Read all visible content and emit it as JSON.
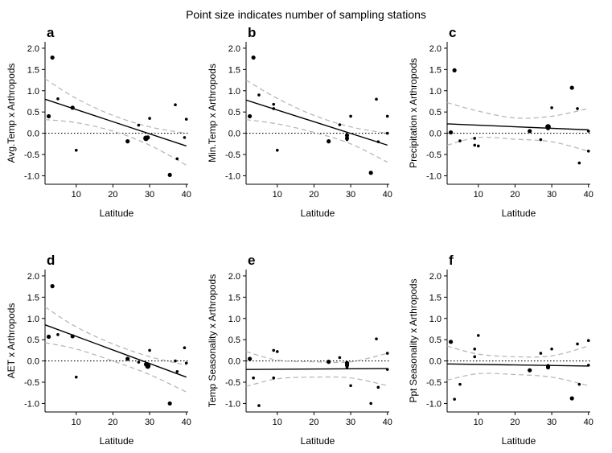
{
  "figure_title": "Point size indicates number of sampling stations",
  "chart_data": [
    {
      "panel": "a",
      "type": "scatter",
      "xlabel": "Latitude",
      "ylabel": "Avg.Temp x Arthropods",
      "xlim": [
        1.5,
        40.5
      ],
      "ylim": [
        -1.2,
        2.15
      ],
      "xticks": [
        10,
        20,
        30,
        40
      ],
      "yticks": [
        -1.0,
        -0.5,
        0.0,
        0.5,
        1.0,
        1.5,
        2.0
      ],
      "points": [
        [
          2.5,
          0.4,
          2
        ],
        [
          3.5,
          1.78,
          2
        ],
        [
          5,
          0.81,
          1
        ],
        [
          9,
          0.6,
          2
        ],
        [
          10,
          -0.4,
          1
        ],
        [
          24,
          -0.19,
          2
        ],
        [
          27,
          0.19,
          1
        ],
        [
          29,
          -0.12,
          3
        ],
        [
          29.5,
          -0.1,
          2
        ],
        [
          30,
          0.35,
          1
        ],
        [
          35.5,
          -0.98,
          2
        ],
        [
          37,
          0.67,
          1
        ],
        [
          37.5,
          -0.6,
          1
        ],
        [
          39.5,
          -0.1,
          1
        ],
        [
          40,
          0.33,
          1
        ]
      ],
      "fit": [
        [
          1.5,
          0.8
        ],
        [
          40,
          -0.3
        ]
      ],
      "ci_upper": [
        [
          1.5,
          1.28
        ],
        [
          10,
          0.82
        ],
        [
          20,
          0.42
        ],
        [
          30,
          0.15
        ],
        [
          40,
          0.0
        ]
      ],
      "ci_lower": [
        [
          1.5,
          0.32
        ],
        [
          10,
          0.25
        ],
        [
          20,
          0.05
        ],
        [
          30,
          -0.28
        ],
        [
          40,
          -0.75
        ]
      ]
    },
    {
      "panel": "b",
      "type": "scatter",
      "xlabel": "Latitude",
      "ylabel": "Min.Temp x Arthropods",
      "xlim": [
        1.5,
        40.5
      ],
      "ylim": [
        -1.2,
        2.15
      ],
      "xticks": [
        10,
        20,
        30,
        40
      ],
      "yticks": [
        -1.0,
        -0.5,
        0.0,
        0.5,
        1.0,
        1.5,
        2.0
      ],
      "points": [
        [
          2.5,
          0.4,
          2
        ],
        [
          3.5,
          1.78,
          2
        ],
        [
          5,
          0.9,
          1
        ],
        [
          9,
          0.68,
          1
        ],
        [
          9,
          0.58,
          1
        ],
        [
          10,
          -0.4,
          1
        ],
        [
          24,
          -0.19,
          2
        ],
        [
          27,
          0.2,
          1
        ],
        [
          29,
          -0.05,
          2
        ],
        [
          29,
          -0.12,
          2
        ],
        [
          29,
          -0.15,
          1
        ],
        [
          30,
          0.4,
          1
        ],
        [
          35.5,
          -0.93,
          2
        ],
        [
          37,
          0.8,
          1
        ],
        [
          37.5,
          -0.2,
          1
        ],
        [
          40,
          0.4,
          1
        ],
        [
          40,
          0.0,
          1
        ]
      ],
      "fit": [
        [
          1.5,
          0.78
        ],
        [
          40,
          -0.28
        ]
      ],
      "ci_upper": [
        [
          1.5,
          1.25
        ],
        [
          10,
          0.82
        ],
        [
          20,
          0.42
        ],
        [
          30,
          0.15
        ],
        [
          40,
          0.0
        ]
      ],
      "ci_lower": [
        [
          1.5,
          0.32
        ],
        [
          10,
          0.22
        ],
        [
          20,
          0.02
        ],
        [
          30,
          -0.25
        ],
        [
          40,
          -0.68
        ]
      ]
    },
    {
      "panel": "c",
      "type": "scatter",
      "xlabel": "Latitude",
      "ylabel": "Precipitation x Arthropods",
      "xlim": [
        1.5,
        40.5
      ],
      "ylim": [
        -1.2,
        2.15
      ],
      "xticks": [
        10,
        20,
        30,
        40
      ],
      "yticks": [
        -1.0,
        -0.5,
        0.0,
        0.5,
        1.0,
        1.5,
        2.0
      ],
      "points": [
        [
          2.5,
          0.02,
          2
        ],
        [
          3.5,
          1.48,
          2
        ],
        [
          5,
          -0.18,
          1
        ],
        [
          9,
          -0.28,
          1
        ],
        [
          9,
          -0.12,
          1
        ],
        [
          10,
          -0.3,
          1
        ],
        [
          24,
          0.05,
          2
        ],
        [
          27,
          -0.15,
          1
        ],
        [
          29,
          0.12,
          2
        ],
        [
          29,
          0.15,
          3
        ],
        [
          30,
          0.6,
          1
        ],
        [
          35.5,
          1.07,
          2
        ],
        [
          37,
          0.58,
          1
        ],
        [
          37.5,
          -0.7,
          1
        ],
        [
          40,
          0.05,
          1
        ],
        [
          40,
          -0.42,
          1
        ]
      ],
      "fit": [
        [
          1.5,
          0.22
        ],
        [
          40,
          0.08
        ]
      ],
      "ci_upper": [
        [
          1.5,
          0.72
        ],
        [
          10,
          0.52
        ],
        [
          20,
          0.36
        ],
        [
          30,
          0.4
        ],
        [
          40,
          0.58
        ]
      ],
      "ci_lower": [
        [
          1.5,
          -0.28
        ],
        [
          10,
          -0.1
        ],
        [
          20,
          -0.14
        ],
        [
          30,
          -0.2
        ],
        [
          40,
          -0.42
        ]
      ]
    },
    {
      "panel": "d",
      "type": "scatter",
      "xlabel": "Latitude",
      "ylabel": "AET x Arthropods",
      "xlim": [
        1.5,
        40.5
      ],
      "ylim": [
        -1.2,
        2.15
      ],
      "xticks": [
        10,
        20,
        30,
        40
      ],
      "yticks": [
        -1.0,
        -0.5,
        0.0,
        0.5,
        1.0,
        1.5,
        2.0
      ],
      "points": [
        [
          2.5,
          0.57,
          2
        ],
        [
          3.5,
          1.76,
          2
        ],
        [
          5,
          0.62,
          1
        ],
        [
          9,
          0.58,
          2
        ],
        [
          10,
          -0.38,
          1
        ],
        [
          24,
          0.05,
          2
        ],
        [
          27,
          -0.03,
          1
        ],
        [
          29,
          -0.08,
          2
        ],
        [
          29.5,
          -0.12,
          3
        ],
        [
          30,
          0.25,
          1
        ],
        [
          35.5,
          -1.0,
          2
        ],
        [
          37,
          0.0,
          1
        ],
        [
          37.5,
          -0.25,
          1
        ],
        [
          39.5,
          0.31,
          1
        ],
        [
          40,
          -0.05,
          1
        ]
      ],
      "fit": [
        [
          1.5,
          0.85
        ],
        [
          40,
          -0.38
        ]
      ],
      "ci_upper": [
        [
          1.5,
          1.27
        ],
        [
          10,
          0.8
        ],
        [
          20,
          0.4
        ],
        [
          30,
          0.1
        ],
        [
          40,
          -0.1
        ]
      ],
      "ci_lower": [
        [
          1.5,
          0.43
        ],
        [
          10,
          0.28
        ],
        [
          20,
          0.0
        ],
        [
          30,
          -0.32
        ],
        [
          40,
          -0.73
        ]
      ]
    },
    {
      "panel": "e",
      "type": "scatter",
      "xlabel": "Latitude",
      "ylabel": "Temp Seasonality x Arthropods",
      "xlim": [
        1.5,
        40.5
      ],
      "ylim": [
        -1.2,
        2.15
      ],
      "xticks": [
        10,
        20,
        30,
        40
      ],
      "yticks": [
        -1.0,
        -0.5,
        0.0,
        0.5,
        1.0,
        1.5,
        2.0
      ],
      "points": [
        [
          2.5,
          0.05,
          2
        ],
        [
          3.5,
          -0.4,
          1
        ],
        [
          5,
          -1.05,
          1
        ],
        [
          9,
          0.25,
          1
        ],
        [
          9,
          -0.4,
          1
        ],
        [
          10,
          0.22,
          1
        ],
        [
          24,
          -0.02,
          2
        ],
        [
          27,
          0.08,
          1
        ],
        [
          29,
          -0.05,
          2
        ],
        [
          29,
          -0.1,
          2
        ],
        [
          29,
          -0.15,
          1
        ],
        [
          30,
          -0.58,
          1
        ],
        [
          35.5,
          -1.0,
          1
        ],
        [
          37,
          0.52,
          1
        ],
        [
          37.5,
          -0.62,
          1
        ],
        [
          40,
          0.18,
          1
        ],
        [
          40,
          -0.2,
          1
        ]
      ],
      "fit": [
        [
          1.5,
          -0.2
        ],
        [
          40,
          -0.18
        ]
      ],
      "ci_upper": [
        [
          1.5,
          0.22
        ],
        [
          10,
          0.02
        ],
        [
          20,
          -0.02
        ],
        [
          30,
          -0.02
        ],
        [
          40,
          0.18
        ]
      ],
      "ci_lower": [
        [
          1.5,
          -0.6
        ],
        [
          10,
          -0.42
        ],
        [
          20,
          -0.38
        ],
        [
          30,
          -0.4
        ],
        [
          40,
          -0.58
        ]
      ]
    },
    {
      "panel": "f",
      "type": "scatter",
      "xlabel": "Latitude",
      "ylabel": "Ppt Seasonality x Arthropods",
      "xlim": [
        1.5,
        40.5
      ],
      "ylim": [
        -1.2,
        2.15
      ],
      "xticks": [
        10,
        20,
        30,
        40
      ],
      "yticks": [
        -1.0,
        -0.5,
        0.0,
        0.5,
        1.0,
        1.5,
        2.0
      ],
      "points": [
        [
          2.5,
          0.45,
          2
        ],
        [
          3.5,
          -0.9,
          1
        ],
        [
          5,
          -0.55,
          1
        ],
        [
          9,
          0.28,
          1
        ],
        [
          9,
          0.1,
          1
        ],
        [
          10,
          0.6,
          1
        ],
        [
          24,
          -0.22,
          2
        ],
        [
          27,
          0.18,
          1
        ],
        [
          29,
          -0.12,
          2
        ],
        [
          29,
          -0.15,
          2
        ],
        [
          30,
          0.28,
          1
        ],
        [
          35.5,
          -0.88,
          2
        ],
        [
          37,
          0.4,
          1
        ],
        [
          37.5,
          -0.55,
          1
        ],
        [
          40,
          0.48,
          1
        ],
        [
          40,
          -0.1,
          1
        ]
      ],
      "fit": [
        [
          1.5,
          -0.07
        ],
        [
          40,
          -0.12
        ]
      ],
      "ci_upper": [
        [
          1.5,
          0.35
        ],
        [
          10,
          0.16
        ],
        [
          20,
          0.1
        ],
        [
          30,
          0.12
        ],
        [
          40,
          0.35
        ]
      ],
      "ci_lower": [
        [
          1.5,
          -0.45
        ],
        [
          10,
          -0.3
        ],
        [
          20,
          -0.32
        ],
        [
          30,
          -0.38
        ],
        [
          40,
          -0.58
        ]
      ]
    }
  ]
}
